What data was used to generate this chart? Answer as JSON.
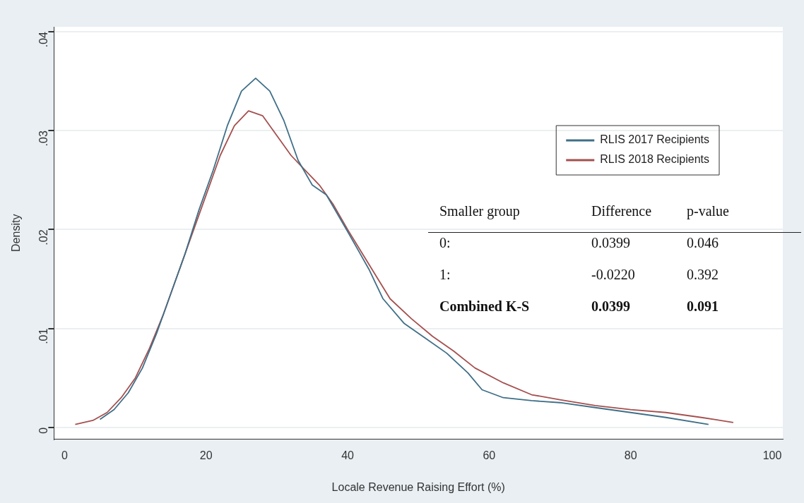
{
  "chart_data": {
    "type": "line",
    "xlabel": "Locale Revenue Raising Effort (%)",
    "ylabel": "Density",
    "xlim": [
      -1.5,
      101.5
    ],
    "ylim": [
      -0.0012,
      0.0405
    ],
    "xticks": [
      0,
      20,
      40,
      60,
      80,
      100
    ],
    "yticks": [
      0,
      {
        "value": 0.01,
        "label": ".01"
      },
      {
        "value": 0.02,
        "label": ".02"
      },
      {
        "value": 0.03,
        "label": ".03"
      },
      {
        "value": 0.04,
        "label": ".04"
      }
    ],
    "grid": "y",
    "legend": "top right",
    "marker": "none",
    "line_style": "solid",
    "series": [
      {
        "name": "RLIS 2017 Recipients",
        "color": "#3f6f88",
        "x": [
          5,
          7,
          9,
          11,
          13,
          15,
          17,
          19,
          21,
          23,
          25,
          27,
          29,
          31,
          33,
          35,
          37,
          40,
          43,
          45,
          48,
          51,
          54,
          57,
          59,
          62,
          66,
          70,
          75,
          80,
          85,
          91
        ],
        "values": [
          0.0008,
          0.0018,
          0.0035,
          0.006,
          0.0095,
          0.0135,
          0.0175,
          0.022,
          0.026,
          0.0305,
          0.034,
          0.0353,
          0.034,
          0.031,
          0.027,
          0.0245,
          0.0235,
          0.0198,
          0.016,
          0.013,
          0.0105,
          0.009,
          0.0075,
          0.0055,
          0.0038,
          0.003,
          0.0027,
          0.0025,
          0.002,
          0.0015,
          0.001,
          0.0003
        ]
      },
      {
        "name": "RLIS 2018 Recipients",
        "color": "#a5504f",
        "x": [
          1.5,
          4,
          6,
          8,
          10,
          12,
          14,
          16,
          18,
          20,
          22,
          24,
          26,
          28,
          30,
          32,
          34,
          36,
          38,
          40,
          43,
          46,
          49,
          52,
          55,
          58,
          62,
          66,
          70,
          75,
          80,
          85,
          90,
          94.5
        ],
        "values": [
          0.0003,
          0.0007,
          0.0015,
          0.003,
          0.005,
          0.008,
          0.0115,
          0.0155,
          0.0195,
          0.0235,
          0.0275,
          0.0305,
          0.032,
          0.0315,
          0.0295,
          0.0275,
          0.026,
          0.0245,
          0.0225,
          0.02,
          0.0165,
          0.013,
          0.011,
          0.0092,
          0.0077,
          0.006,
          0.0045,
          0.0033,
          0.0028,
          0.0022,
          0.0018,
          0.0015,
          0.001,
          0.0005
        ]
      }
    ],
    "annotations": [
      "Smaller group",
      "Difference",
      "p-value",
      "0:",
      "0.0399",
      "0.046",
      "1:",
      "-0.0220",
      "0.392",
      "Combined K-S",
      "0.0399",
      "0.091"
    ]
  }
}
